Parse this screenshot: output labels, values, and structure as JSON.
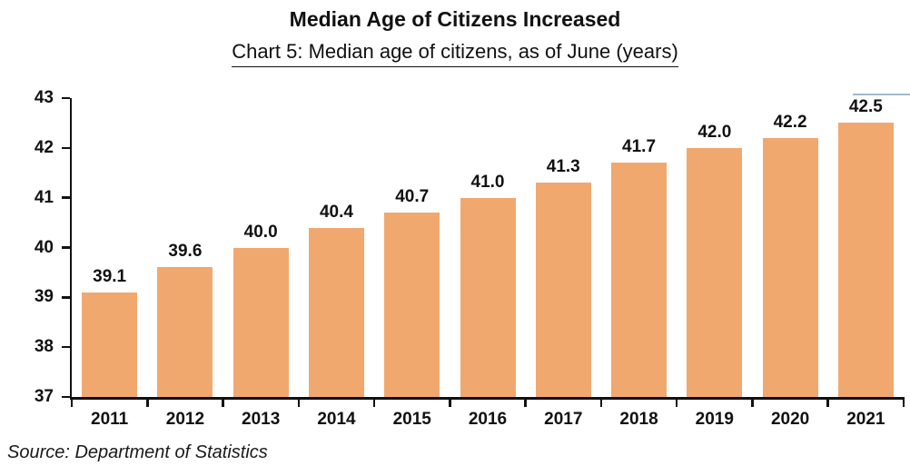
{
  "header": {
    "title": "Median Age of Citizens Increased",
    "subtitle": "Chart 5: Median age of citizens, as of June (years)"
  },
  "footer": {
    "source": "Source: Department of Statistics"
  },
  "colors": {
    "bar": "#F1A86F",
    "axis": "#111111",
    "text": "#111111",
    "annotation_line": "#9FBCCE"
  },
  "chart_data": {
    "type": "bar",
    "title": "Median Age of Citizens Increased",
    "subtitle": "Chart 5: Median age of citizens, as of June (years)",
    "categories": [
      "2011",
      "2012",
      "2013",
      "2014",
      "2015",
      "2016",
      "2017",
      "2018",
      "2019",
      "2020",
      "2021"
    ],
    "values": [
      39.1,
      39.6,
      40.0,
      40.4,
      40.7,
      41.0,
      41.3,
      41.7,
      42.0,
      42.2,
      42.5
    ],
    "value_labels": [
      "39.1",
      "39.6",
      "40.0",
      "40.4",
      "40.7",
      "41.0",
      "41.3",
      "41.7",
      "42.0",
      "42.2",
      "42.5"
    ],
    "xlabel": "",
    "ylabel": "",
    "ylim": [
      37,
      43
    ],
    "yticks": [
      37,
      38,
      39,
      40,
      41,
      42,
      43
    ],
    "grid": false,
    "legend": "none",
    "bar_color": "#F1A86F",
    "annotation_tick": {
      "category": "2021",
      "color": "#9FBCCE"
    }
  }
}
